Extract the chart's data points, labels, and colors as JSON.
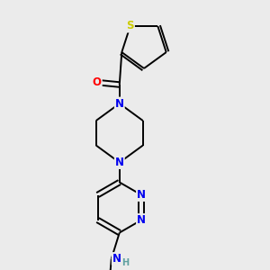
{
  "background_color": "#ebebeb",
  "atom_colors": {
    "C": "#000000",
    "N": "#0000ee",
    "O": "#ff0000",
    "S": "#cccc00",
    "H": "#5fa0a0"
  },
  "bond_color": "#000000",
  "bond_lw": 1.4,
  "dbl_off": 0.055,
  "fs": 8.5
}
